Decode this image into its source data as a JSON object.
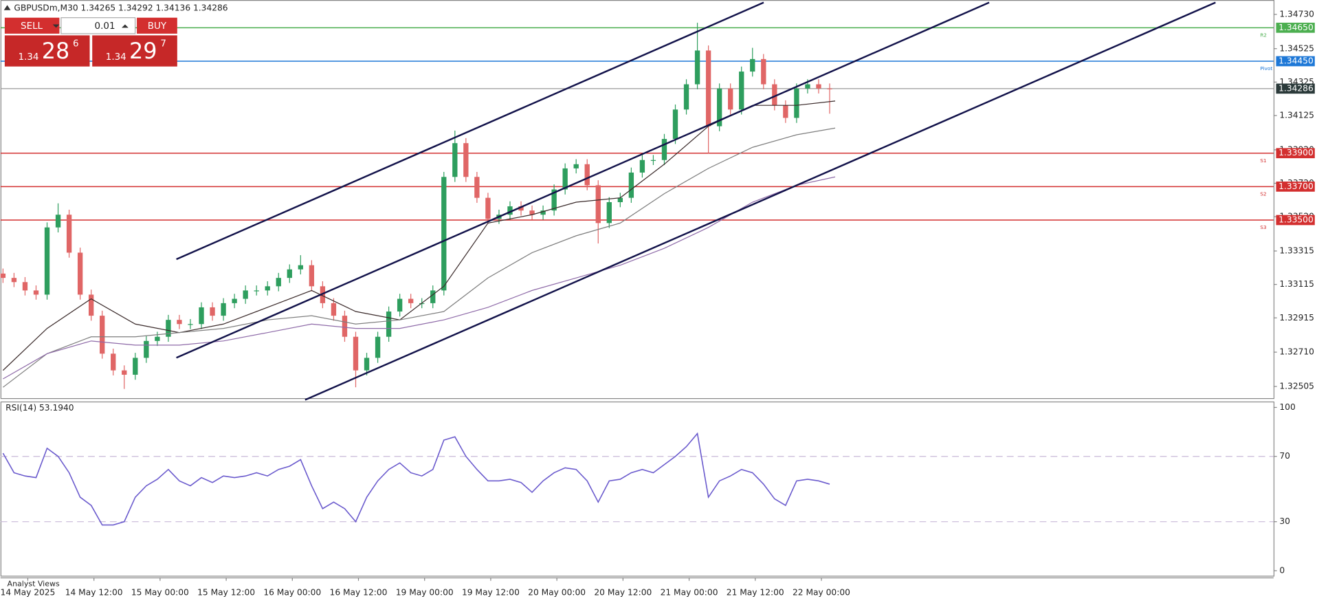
{
  "chart_data": {
    "type": "candlestick",
    "header": "GBPUSDm,M30  1.34265 1.34292 1.34136 1.34286",
    "xlim": [
      -0.9,
      461.1
    ],
    "xticks": [
      {
        "value": 9,
        "label": "14 May 2025"
      },
      {
        "value": 33,
        "label": "14 May 12:00"
      },
      {
        "value": 57,
        "label": "15 May 00:00"
      },
      {
        "value": 81,
        "label": "15 May 12:00"
      },
      {
        "value": 105,
        "label": "16 May 00:00"
      },
      {
        "value": 129,
        "label": "16 May 12:00"
      },
      {
        "value": 153,
        "label": "19 May 00:00"
      },
      {
        "value": 177,
        "label": "19 May 12:00"
      },
      {
        "value": 201,
        "label": "20 May 00:00"
      },
      {
        "value": 225,
        "label": "20 May 12:00"
      },
      {
        "value": 249,
        "label": "21 May 00:00"
      },
      {
        "value": 273,
        "label": "21 May 12:00"
      },
      {
        "value": 297,
        "label": "22 May 00:00"
      }
    ],
    "ylim": [
      1.32435,
      1.34816
    ],
    "yticks": [
      {
        "value": 1.3473,
        "label": "1.34730"
      },
      {
        "value": 1.34525,
        "label": "1.34525"
      },
      {
        "value": 1.34325,
        "label": "1.34325"
      },
      {
        "value": 1.34125,
        "label": "1.34125"
      },
      {
        "value": 1.3392,
        "label": "1.33920"
      },
      {
        "value": 1.3372,
        "label": "1.33720"
      },
      {
        "value": 1.3352,
        "label": "1.33520"
      },
      {
        "value": 1.33315,
        "label": "1.33315"
      },
      {
        "value": 1.33115,
        "label": "1.33115"
      },
      {
        "value": 1.32915,
        "label": "1.32915"
      },
      {
        "value": 1.3271,
        "label": "1.32710"
      },
      {
        "value": 1.32505,
        "label": "1.32505"
      }
    ],
    "up_color": "#2e9e5e",
    "down_color": "#e06666",
    "ohlc": {
      "x": [
        0,
        4,
        8,
        12,
        16,
        20,
        24,
        28,
        32,
        36,
        40,
        44,
        48,
        52,
        56,
        60,
        64,
        68,
        72,
        76,
        80,
        84,
        88,
        92,
        96,
        100,
        104,
        108,
        112,
        116,
        120,
        124,
        128,
        132,
        136,
        140,
        144,
        148,
        152,
        156,
        160,
        164,
        168,
        172,
        176,
        180,
        184,
        188,
        192,
        196,
        200,
        204,
        208,
        212,
        216,
        220,
        224,
        228,
        232,
        236,
        240,
        244,
        248,
        252,
        256,
        260,
        264,
        268,
        272,
        276,
        280,
        284,
        288,
        292,
        296,
        300
      ],
      "open": [
        1.3318,
        1.33154,
        1.33129,
        1.33079,
        1.33054,
        1.33456,
        1.33532,
        1.33305,
        1.33054,
        1.32928,
        1.32701,
        1.32601,
        1.32575,
        1.32676,
        1.32777,
        1.32802,
        1.32903,
        1.32878,
        1.32878,
        1.32978,
        1.32928,
        1.33003,
        1.33029,
        1.33079,
        1.33079,
        1.33104,
        1.33154,
        1.33205,
        1.3323,
        1.33104,
        1.33003,
        1.32928,
        1.32802,
        1.32601,
        1.32676,
        1.32802,
        1.32953,
        1.33029,
        1.33003,
        1.33003,
        1.33079,
        1.33758,
        1.3396,
        1.33758,
        1.33633,
        1.33507,
        1.33532,
        1.33582,
        1.33557,
        1.33532,
        1.33557,
        1.33683,
        1.33809,
        1.33834,
        1.33708,
        1.33482,
        1.33607,
        1.33633,
        1.33784,
        1.33859,
        1.33859,
        1.33985,
        1.34161,
        1.34312,
        1.34514,
        1.34061,
        1.34287,
        1.34161,
        1.34388,
        1.34463,
        1.34312,
        1.34186,
        1.34111,
        1.34287,
        1.34312,
        1.34287
      ],
      "high": [
        1.3321,
        1.33184,
        1.33159,
        1.33109,
        1.33486,
        1.336,
        1.33562,
        1.33335,
        1.33084,
        1.32958,
        1.32731,
        1.32631,
        1.32706,
        1.32807,
        1.32832,
        1.32933,
        1.32933,
        1.32908,
        1.33008,
        1.33008,
        1.33033,
        1.33059,
        1.33109,
        1.33109,
        1.33134,
        1.33184,
        1.33235,
        1.3329,
        1.3326,
        1.33134,
        1.33033,
        1.32958,
        1.32832,
        1.32706,
        1.32832,
        1.32983,
        1.33059,
        1.33059,
        1.33033,
        1.33109,
        1.33788,
        1.34035,
        1.3399,
        1.33788,
        1.33663,
        1.33562,
        1.33612,
        1.33612,
        1.33587,
        1.33587,
        1.33713,
        1.33839,
        1.33864,
        1.33864,
        1.33738,
        1.33637,
        1.33663,
        1.33814,
        1.33889,
        1.33889,
        1.34015,
        1.34191,
        1.34342,
        1.3468,
        1.34544,
        1.34317,
        1.34317,
        1.34418,
        1.3453,
        1.34493,
        1.34342,
        1.34216,
        1.34317,
        1.34342,
        1.34342,
        1.34317
      ],
      "low": [
        1.33124,
        1.33099,
        1.33049,
        1.33024,
        1.33024,
        1.33426,
        1.33275,
        1.33024,
        1.32898,
        1.32671,
        1.32571,
        1.3249,
        1.32545,
        1.32646,
        1.32747,
        1.32772,
        1.32848,
        1.32848,
        1.32848,
        1.32898,
        1.32898,
        1.32973,
        1.32999,
        1.33049,
        1.33049,
        1.33074,
        1.33124,
        1.33175,
        1.33074,
        1.32973,
        1.32898,
        1.32772,
        1.325,
        1.32571,
        1.32646,
        1.32772,
        1.32923,
        1.32973,
        1.32973,
        1.32973,
        1.33049,
        1.33728,
        1.33728,
        1.33603,
        1.33477,
        1.33477,
        1.33502,
        1.33527,
        1.33502,
        1.33502,
        1.33527,
        1.33653,
        1.33779,
        1.33678,
        1.3336,
        1.33452,
        1.33577,
        1.33603,
        1.33754,
        1.33829,
        1.33829,
        1.33955,
        1.34131,
        1.34282,
        1.339,
        1.34031,
        1.34131,
        1.34131,
        1.34358,
        1.34282,
        1.34156,
        1.34081,
        1.34081,
        1.34257,
        1.34257,
        1.34136
      ],
      "close": [
        1.33154,
        1.33129,
        1.33079,
        1.33054,
        1.33456,
        1.33532,
        1.33305,
        1.33054,
        1.32928,
        1.32701,
        1.32601,
        1.32575,
        1.32676,
        1.32777,
        1.32802,
        1.32903,
        1.32878,
        1.32878,
        1.32978,
        1.32928,
        1.33003,
        1.33029,
        1.33079,
        1.33079,
        1.33104,
        1.33154,
        1.33205,
        1.3323,
        1.33104,
        1.33003,
        1.32928,
        1.32802,
        1.32601,
        1.32676,
        1.32802,
        1.32953,
        1.33029,
        1.33003,
        1.33003,
        1.33079,
        1.33758,
        1.3396,
        1.33758,
        1.33633,
        1.33507,
        1.33532,
        1.33582,
        1.33557,
        1.33532,
        1.33557,
        1.33683,
        1.33809,
        1.33834,
        1.33708,
        1.33482,
        1.33607,
        1.33633,
        1.33784,
        1.33859,
        1.33859,
        1.33985,
        1.34161,
        1.34312,
        1.34514,
        1.34061,
        1.34287,
        1.34161,
        1.34388,
        1.34463,
        1.34312,
        1.34186,
        1.34111,
        1.34287,
        1.34312,
        1.34287,
        1.34286
      ]
    },
    "ma_x": [
      0,
      16,
      32,
      48,
      64,
      80,
      96,
      112,
      128,
      144,
      160,
      176,
      192,
      208,
      224,
      240,
      256,
      272,
      288,
      302
    ],
    "moving_averages": [
      {
        "color": "#3a2a2a",
        "values": [
          1.32601,
          1.32852,
          1.33029,
          1.32878,
          1.32827,
          1.32878,
          1.32978,
          1.33079,
          1.32953,
          1.32903,
          1.33104,
          1.33482,
          1.33532,
          1.33607,
          1.33633,
          1.33834,
          1.34061,
          1.34186,
          1.34186,
          1.34212
        ]
      },
      {
        "color": "#7d7d7d",
        "values": [
          1.325,
          1.32701,
          1.32802,
          1.32802,
          1.32827,
          1.32852,
          1.32903,
          1.32928,
          1.32878,
          1.32903,
          1.32953,
          1.33154,
          1.33305,
          1.33406,
          1.33482,
          1.33658,
          1.33809,
          1.33935,
          1.3401,
          1.3405
        ]
      },
      {
        "color": "#8e6aa8",
        "values": [
          1.3255,
          1.32701,
          1.32777,
          1.32752,
          1.32752,
          1.32777,
          1.32827,
          1.32878,
          1.32852,
          1.32852,
          1.32903,
          1.32978,
          1.33079,
          1.33154,
          1.3323,
          1.33331,
          1.33456,
          1.33607,
          1.33708,
          1.33758
        ]
      }
    ],
    "levels": [
      {
        "name": "R2",
        "value": 1.3465,
        "label": "1.34650",
        "color": "#4caf50"
      },
      {
        "name": "Pivot",
        "value": 1.3445,
        "label": "1.34450",
        "color": "#1e78d7"
      },
      {
        "name": "S1",
        "value": 1.339,
        "label": "1.33900",
        "color": "#d32f2f"
      },
      {
        "name": "S2",
        "value": 1.337,
        "label": "1.33700",
        "color": "#d32f2f"
      },
      {
        "name": "S3",
        "value": 1.335,
        "label": "1.33500",
        "color": "#d32f2f"
      }
    ],
    "last_price": {
      "value": 1.34286,
      "label": "1.34286",
      "color": "#2b3a3a"
    },
    "indicator": {
      "title": "RSI(14) 53.1940",
      "color": "#6a5acd",
      "ylim": [
        -3.1,
        103.1
      ],
      "yticks": [
        100,
        70,
        30,
        0
      ],
      "values": [
        72,
        60,
        58,
        57,
        75,
        70,
        60,
        45,
        40,
        28,
        28,
        30,
        45,
        52,
        56,
        62,
        55,
        52,
        57,
        54,
        58,
        57,
        58,
        60,
        58,
        62,
        64,
        68,
        52,
        38,
        42,
        38,
        30,
        45,
        55,
        62,
        66,
        60,
        58,
        62,
        80,
        82,
        70,
        62,
        55,
        55,
        56,
        54,
        48,
        55,
        60,
        63,
        62,
        55,
        42,
        55,
        56,
        60,
        62,
        60,
        65,
        70,
        76,
        84,
        45,
        55,
        58,
        62,
        60,
        53,
        44,
        40,
        55,
        56,
        55,
        53
      ]
    },
    "footer": "Analyst Views"
  },
  "trade": {
    "sell": "SELL",
    "buy": "BUY",
    "volume": "0.01",
    "bid": {
      "prefix": "1.34",
      "main": "28",
      "sup": "6"
    },
    "ask": {
      "prefix": "1.34",
      "main": "29",
      "sup": "7"
    }
  }
}
